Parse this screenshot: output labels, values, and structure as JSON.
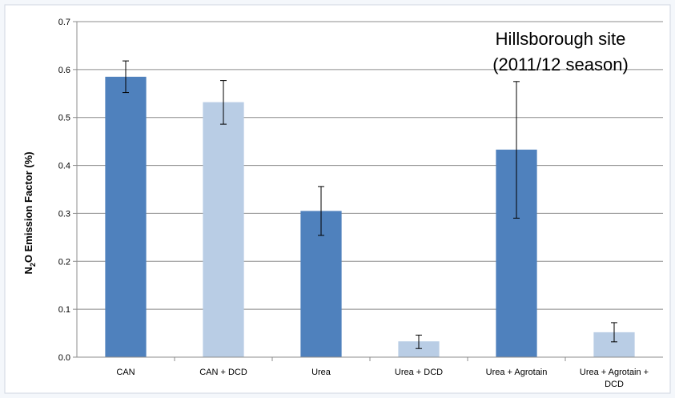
{
  "chart_data": {
    "type": "bar",
    "categories": [
      [
        "CAN"
      ],
      [
        "CAN + DCD"
      ],
      [
        "Urea"
      ],
      [
        "Urea + DCD"
      ],
      [
        "Urea + Agrotain"
      ],
      [
        "Urea + Agrotain +",
        "DCD"
      ]
    ],
    "values": [
      0.585,
      0.532,
      0.305,
      0.033,
      0.433,
      0.052
    ],
    "error_low": [
      0.552,
      0.486,
      0.254,
      0.018,
      0.29,
      0.032
    ],
    "error_high": [
      0.618,
      0.577,
      0.356,
      0.046,
      0.575,
      0.072
    ],
    "bar_colors": [
      "#4f81bd",
      "#b9cde5",
      "#4f81bd",
      "#b9cde5",
      "#4f81bd",
      "#b9cde5"
    ],
    "ylabel_parts": {
      "prefix": "N",
      "subscript": "2",
      "suffix": "O Emission Factor (%)"
    },
    "ylim": [
      0,
      0.7
    ],
    "yticks": [
      "0.0",
      "0.1",
      "0.2",
      "0.3",
      "0.4",
      "0.5",
      "0.6",
      "0.7"
    ],
    "annotation": [
      "Hillsborough site",
      "(2011/12 season)"
    ],
    "grid": true
  }
}
